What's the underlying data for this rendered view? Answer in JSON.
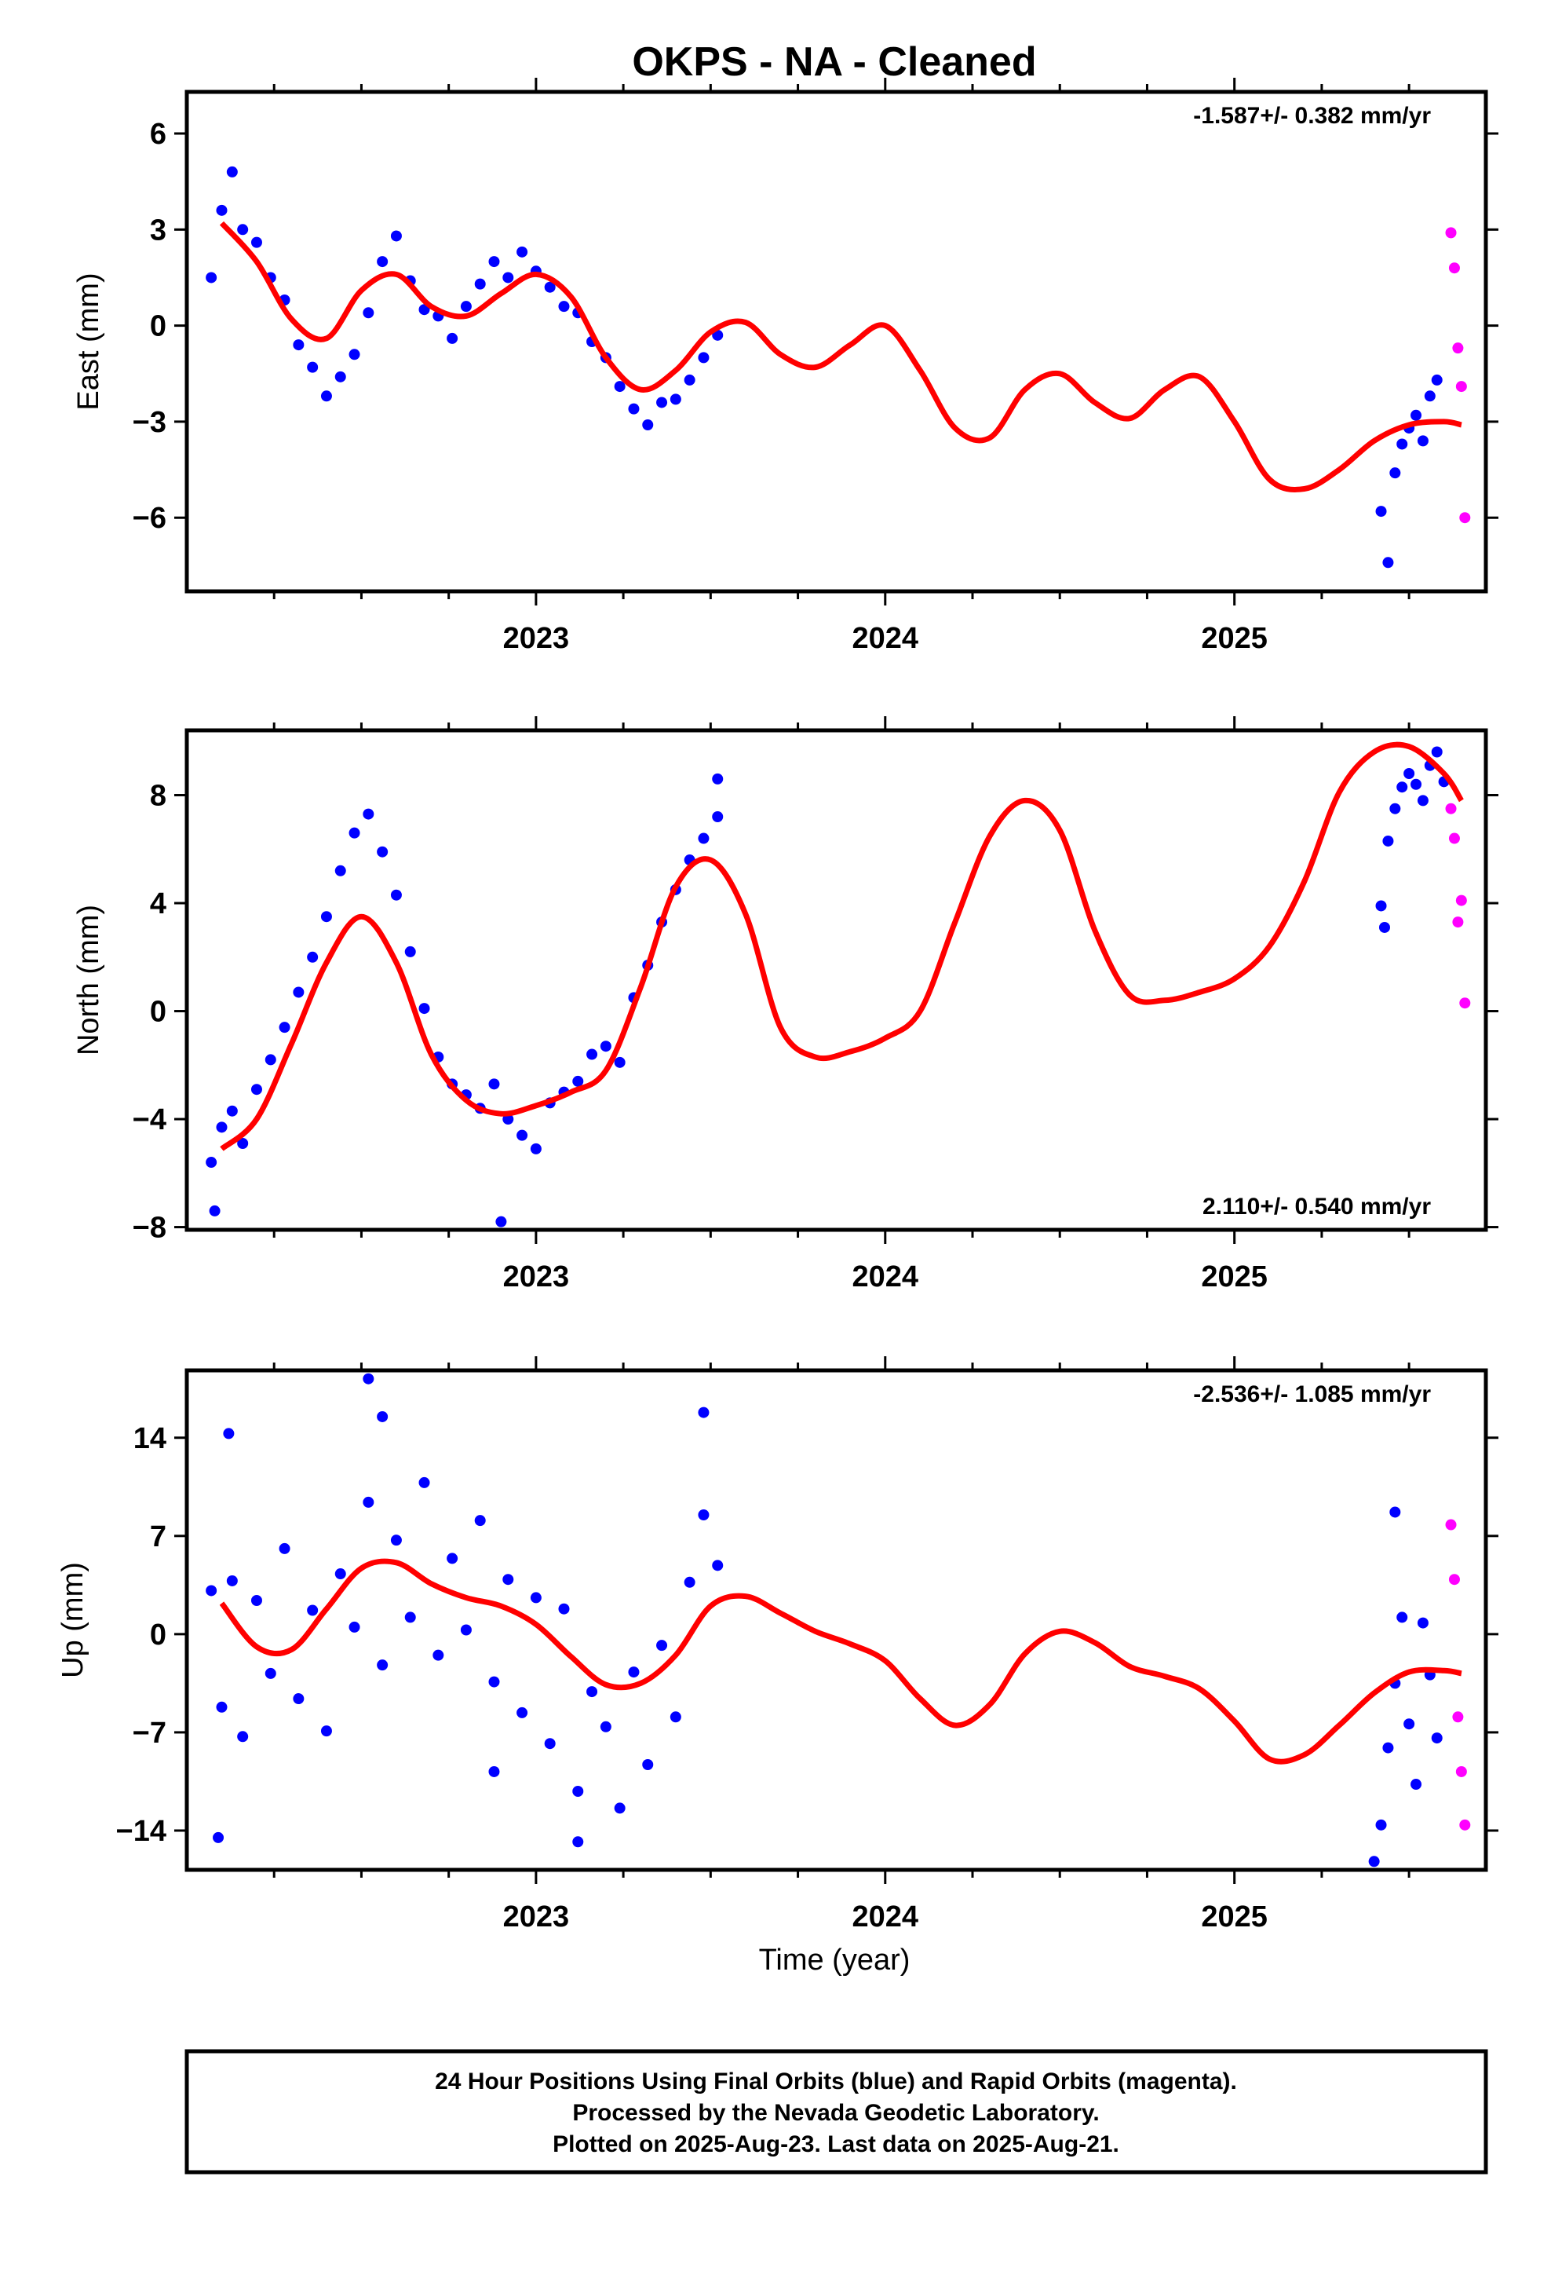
{
  "chart_data": {
    "type": "scatter",
    "title": "OKPS  - NA - Cleaned",
    "xlabel": "Time (year)",
    "xlim": [
      2022.0,
      2025.72
    ],
    "x_ticks": [
      2023,
      2024,
      2025
    ],
    "x_tick_labels": [
      "2023",
      "2024",
      "2025"
    ],
    "legend": "none",
    "grid": false,
    "colors": {
      "final": "#0000ff",
      "rapid": "#ff00ff",
      "model": "#ff0000"
    },
    "panels": [
      {
        "ylabel": "East (mm)",
        "ylim": [
          -8.3,
          7.3
        ],
        "y_ticks": [
          6,
          3,
          0,
          -3,
          -6
        ],
        "y_tick_labels": [
          "6",
          "3",
          "0",
          "−3",
          "−6"
        ],
        "rate": "-1.587+/- 0.382 mm/yr",
        "rate_position": "top-right",
        "model": {
          "x": [
            2022.1,
            2022.2,
            2022.3,
            2022.4,
            2022.5,
            2022.6,
            2022.7,
            2022.8,
            2022.9,
            2023.0,
            2023.1,
            2023.2,
            2023.3,
            2023.4,
            2023.5,
            2023.6,
            2023.7,
            2023.8,
            2023.9,
            2024.0,
            2024.1,
            2024.2,
            2024.3,
            2024.4,
            2024.5,
            2024.6,
            2024.7,
            2024.8,
            2024.9,
            2025.0,
            2025.1,
            2025.2,
            2025.3,
            2025.4,
            2025.5,
            2025.6,
            2025.65
          ],
          "y": [
            3.2,
            2.0,
            0.2,
            -0.4,
            1.1,
            1.6,
            0.6,
            0.3,
            1.0,
            1.6,
            0.9,
            -1.0,
            -2.0,
            -1.4,
            -0.2,
            0.1,
            -0.9,
            -1.3,
            -0.6,
            0.0,
            -1.4,
            -3.2,
            -3.5,
            -2.0,
            -1.5,
            -2.4,
            -2.9,
            -2.0,
            -1.6,
            -3.0,
            -4.8,
            -5.1,
            -4.5,
            -3.6,
            -3.1,
            -3.0,
            -3.1
          ]
        },
        "final": {
          "x": [
            2022.07,
            2022.1,
            2022.13,
            2022.16,
            2022.2,
            2022.24,
            2022.28,
            2022.32,
            2022.36,
            2022.4,
            2022.44,
            2022.48,
            2022.52,
            2022.56,
            2022.6,
            2022.64,
            2022.68,
            2022.72,
            2022.76,
            2022.8,
            2022.84,
            2022.88,
            2022.92,
            2022.96,
            2023.0,
            2023.04,
            2023.08,
            2023.12,
            2023.16,
            2023.2,
            2023.24,
            2023.28,
            2023.32,
            2023.36,
            2023.4,
            2023.44,
            2023.48,
            2023.52,
            2025.42,
            2025.44,
            2025.46,
            2025.48,
            2025.5,
            2025.52,
            2025.54,
            2025.56,
            2025.58
          ],
          "y": [
            1.5,
            3.6,
            4.8,
            3.0,
            2.6,
            1.5,
            0.8,
            -0.6,
            -1.3,
            -2.2,
            -1.6,
            -0.9,
            0.4,
            2.0,
            2.8,
            1.4,
            0.5,
            0.3,
            -0.4,
            0.6,
            1.3,
            2.0,
            1.5,
            2.3,
            1.7,
            1.2,
            0.6,
            0.4,
            -0.5,
            -1.0,
            -1.9,
            -2.6,
            -3.1,
            -2.4,
            -2.3,
            -1.7,
            -1.0,
            -0.3,
            -5.8,
            -7.4,
            -4.6,
            -3.7,
            -3.2,
            -2.8,
            -3.6,
            -2.2,
            -1.7
          ]
        },
        "rapid": {
          "x": [
            2025.62,
            2025.63,
            2025.64,
            2025.65,
            2025.66
          ],
          "y": [
            2.9,
            1.8,
            -0.7,
            -1.9,
            -6.0
          ]
        }
      },
      {
        "ylabel": "North (mm)",
        "ylim": [
          -8.1,
          10.4
        ],
        "y_ticks": [
          8,
          4,
          0,
          -4,
          -8
        ],
        "y_tick_labels": [
          "8",
          "4",
          "0",
          "−4",
          "−8"
        ],
        "rate": "2.110+/- 0.540 mm/yr",
        "rate_position": "bottom-right",
        "model": {
          "x": [
            2022.1,
            2022.2,
            2022.3,
            2022.4,
            2022.5,
            2022.6,
            2022.7,
            2022.8,
            2022.9,
            2023.0,
            2023.1,
            2023.2,
            2023.3,
            2023.4,
            2023.5,
            2023.6,
            2023.7,
            2023.8,
            2023.9,
            2024.0,
            2024.1,
            2024.2,
            2024.3,
            2024.4,
            2024.5,
            2024.6,
            2024.7,
            2024.8,
            2024.9,
            2025.0,
            2025.1,
            2025.2,
            2025.3,
            2025.4,
            2025.5,
            2025.6,
            2025.65
          ],
          "y": [
            -5.1,
            -4.0,
            -1.2,
            1.8,
            3.5,
            1.8,
            -1.6,
            -3.3,
            -3.8,
            -3.5,
            -3.0,
            -2.2,
            0.9,
            4.6,
            5.6,
            3.6,
            -0.6,
            -1.7,
            -1.5,
            -1.0,
            0.0,
            3.3,
            6.5,
            7.8,
            6.7,
            3.0,
            0.6,
            0.4,
            0.7,
            1.2,
            2.4,
            4.8,
            8.1,
            9.6,
            9.8,
            8.8,
            7.8
          ]
        },
        "final": {
          "x": [
            2022.07,
            2022.1,
            2022.13,
            2022.16,
            2022.2,
            2022.24,
            2022.28,
            2022.32,
            2022.36,
            2022.4,
            2022.44,
            2022.48,
            2022.52,
            2022.56,
            2022.6,
            2022.64,
            2022.68,
            2022.72,
            2022.76,
            2022.8,
            2022.84,
            2022.88,
            2022.92,
            2022.96,
            2023.0,
            2023.04,
            2023.08,
            2023.12,
            2023.16,
            2023.2,
            2023.24,
            2023.28,
            2023.32,
            2023.36,
            2023.4,
            2023.44,
            2023.48,
            2023.52,
            2025.42,
            2025.44,
            2025.46,
            2025.48,
            2025.5,
            2025.52,
            2025.54,
            2025.56,
            2025.58,
            2025.6
          ],
          "y": [
            -5.6,
            -4.3,
            -3.7,
            -4.9,
            -2.9,
            -1.8,
            -0.6,
            0.7,
            2.0,
            3.5,
            5.2,
            6.6,
            7.3,
            5.9,
            4.3,
            2.2,
            0.1,
            -1.7,
            -2.7,
            -3.1,
            -3.6,
            -2.7,
            -4.0,
            -4.6,
            -5.1,
            -3.4,
            -3.0,
            -2.6,
            -1.6,
            -1.3,
            -1.9,
            0.5,
            1.7,
            3.3,
            4.5,
            5.6,
            6.4,
            7.2,
            3.9,
            6.3,
            7.5,
            8.3,
            8.8,
            8.4,
            7.8,
            9.1,
            9.6,
            8.5
          ],
          "outliers": {
            "x": [
              2022.08,
              2022.9,
              2023.52,
              2025.43
            ],
            "y": [
              -7.4,
              -7.8,
              8.6,
              3.1
            ]
          }
        },
        "rapid": {
          "x": [
            2025.62,
            2025.63,
            2025.64,
            2025.65,
            2025.66
          ],
          "y": [
            7.5,
            6.4,
            3.3,
            4.1,
            0.3
          ]
        }
      },
      {
        "ylabel": "Up (mm)",
        "ylim": [
          -16.8,
          18.8
        ],
        "y_ticks": [
          14,
          7,
          0,
          -7,
          -14
        ],
        "y_tick_labels": [
          "14",
          "7",
          "0",
          "−7",
          "−14"
        ],
        "rate": "-2.536+/- 1.085 mm/yr",
        "rate_position": "top-right",
        "model": {
          "x": [
            2022.1,
            2022.2,
            2022.3,
            2022.4,
            2022.5,
            2022.6,
            2022.7,
            2022.8,
            2022.9,
            2023.0,
            2023.1,
            2023.2,
            2023.3,
            2023.4,
            2023.5,
            2023.6,
            2023.7,
            2023.8,
            2023.9,
            2024.0,
            2024.1,
            2024.2,
            2024.3,
            2024.4,
            2024.5,
            2024.6,
            2024.7,
            2024.8,
            2024.9,
            2025.0,
            2025.1,
            2025.2,
            2025.3,
            2025.4,
            2025.5,
            2025.6,
            2025.65
          ],
          "y": [
            2.2,
            -0.9,
            -1.1,
            1.8,
            4.7,
            5.1,
            3.6,
            2.6,
            2.0,
            0.7,
            -1.6,
            -3.6,
            -3.5,
            -1.5,
            2.0,
            2.7,
            1.5,
            0.2,
            -0.7,
            -1.9,
            -4.6,
            -6.5,
            -5.0,
            -1.4,
            0.2,
            -0.6,
            -2.3,
            -3.0,
            -3.9,
            -6.2,
            -8.9,
            -8.6,
            -6.5,
            -4.2,
            -2.7,
            -2.6,
            -2.8
          ]
        },
        "final": {
          "x": [
            2022.07,
            2022.1,
            2022.13,
            2022.16,
            2022.2,
            2022.24,
            2022.28,
            2022.32,
            2022.36,
            2022.4,
            2022.44,
            2022.48,
            2022.52,
            2022.56,
            2022.6,
            2022.64,
            2022.68,
            2022.72,
            2022.76,
            2022.8,
            2022.84,
            2022.88,
            2022.92,
            2022.96,
            2023.0,
            2023.04,
            2023.08,
            2023.12,
            2023.16,
            2023.2,
            2023.24,
            2023.28,
            2023.32,
            2023.36,
            2023.4,
            2023.44,
            2023.48,
            2023.52,
            2025.42,
            2025.44,
            2025.46,
            2025.48,
            2025.5,
            2025.52,
            2025.54,
            2025.56,
            2025.58
          ],
          "y": [
            3.1,
            -5.2,
            3.8,
            -7.3,
            2.4,
            -2.8,
            6.1,
            -4.6,
            1.7,
            -6.9,
            4.3,
            0.5,
            9.4,
            -2.2,
            6.7,
            1.2,
            10.8,
            -1.5,
            5.4,
            0.3,
            8.1,
            -3.4,
            3.9,
            -5.6,
            2.6,
            -7.8,
            1.8,
            -11.2,
            -4.1,
            -6.6,
            -12.4,
            -2.7,
            -9.3,
            -0.8,
            -5.9,
            3.7,
            8.5,
            4.9,
            -13.6,
            -8.1,
            -3.5,
            1.2,
            -6.4,
            -10.7,
            0.8,
            -2.9,
            -7.4
          ],
          "outliers": {
            "x": [
              2022.09,
              2022.12,
              2022.52,
              2022.56,
              2022.88,
              2023.12,
              2023.48,
              2025.4,
              2025.46
            ],
            "y": [
              -14.5,
              14.3,
              18.2,
              15.5,
              -9.8,
              -14.8,
              15.8,
              -16.2,
              8.7
            ]
          }
        },
        "rapid": {
          "x": [
            2025.62,
            2025.63,
            2025.64,
            2025.65,
            2025.66
          ],
          "y": [
            7.8,
            3.9,
            -5.9,
            -9.8,
            -13.6
          ]
        }
      }
    ]
  },
  "footer": {
    "line1": "24 Hour Positions Using Final Orbits (blue) and Rapid Orbits (magenta).",
    "line2": "Processed by the Nevada Geodetic Laboratory.",
    "line3": "Plotted on 2025-Aug-23. Last data on 2025-Aug-21."
  }
}
